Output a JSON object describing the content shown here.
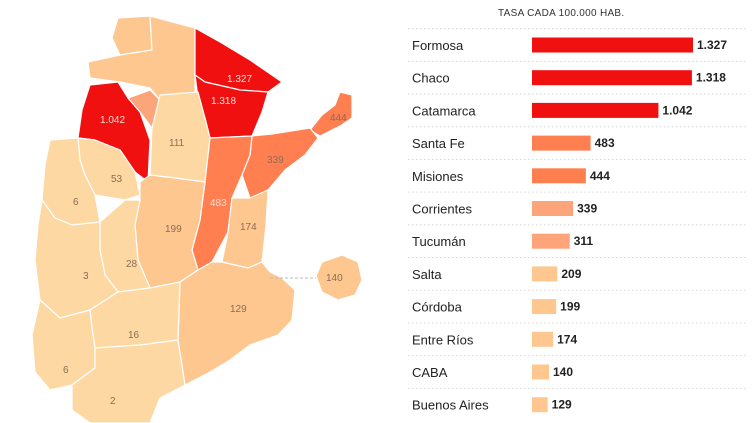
{
  "colors": {
    "darkest": "#f01010",
    "dark": "#ff7f50",
    "medium": "#fda47a",
    "light": "#fdc78f",
    "lightest": "#fdd8a3"
  },
  "map": {
    "labels": [
      "1.327",
      "1.318",
      "1.042",
      "444",
      "111",
      "339",
      "53",
      "483",
      "6",
      "199",
      "174",
      "28",
      "140",
      "3",
      "129",
      "16",
      "6",
      "2"
    ]
  },
  "chart_data": {
    "type": "bar",
    "title": "TASA CADA 100.000 HAB.",
    "categories": [
      "Formosa",
      "Chaco",
      "Catamarca",
      "Santa Fe",
      "Misiones",
      "Corrientes",
      "Tucumán",
      "Salta",
      "Córdoba",
      "Entre Ríos",
      "CABA",
      "Buenos Aires"
    ],
    "values": [
      1327,
      1318,
      1042,
      483,
      444,
      339,
      311,
      209,
      199,
      174,
      140,
      129
    ],
    "value_labels": [
      "1.327",
      "1.318",
      "1.042",
      "483",
      "444",
      "339",
      "311",
      "209",
      "199",
      "174",
      "140",
      "129"
    ],
    "xlim": [
      0,
      1327
    ],
    "color_by_value": [
      {
        "min": 1000,
        "color": "#f01010"
      },
      {
        "min": 400,
        "color": "#ff7f50"
      },
      {
        "min": 300,
        "color": "#fda47a"
      },
      {
        "min": 0,
        "color": "#fdc78f"
      }
    ]
  }
}
